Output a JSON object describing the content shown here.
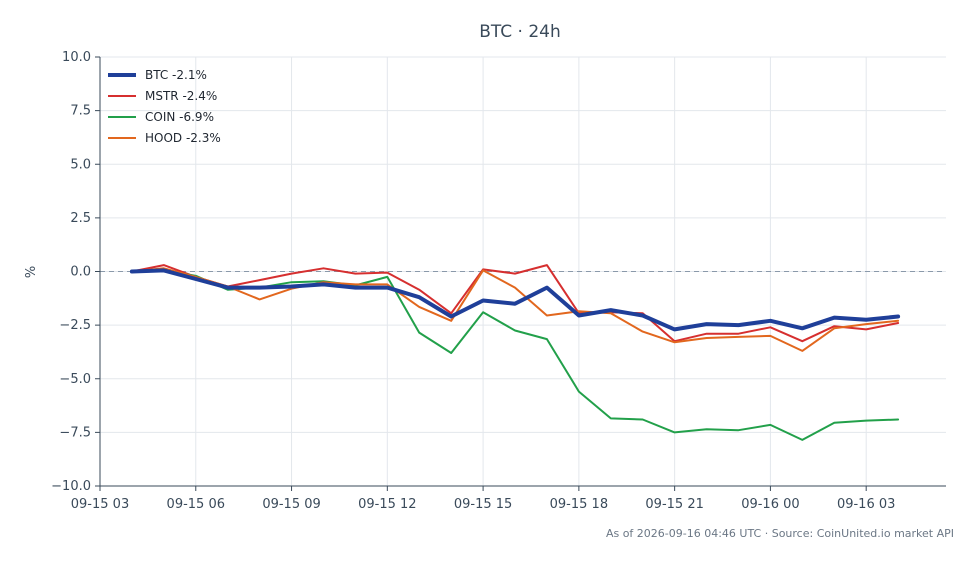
{
  "chart_data": {
    "type": "line",
    "title": "BTC · 24h",
    "ylabel": "%",
    "xlabel": "",
    "ylim": [
      -10,
      10
    ],
    "yticks": [
      10,
      7.5,
      5,
      2.5,
      0,
      -2.5,
      -5,
      -7.5,
      -10
    ],
    "ytick_labels": [
      "10.0",
      "7.5",
      "5.0",
      "2.5",
      "0.0",
      "−2.5",
      "−5.0",
      "−7.5",
      "−10.0"
    ],
    "xlim": [
      0,
      26.5
    ],
    "xticks": [
      0,
      3,
      6,
      9,
      12,
      15,
      18,
      21,
      24
    ],
    "xtick_labels": [
      "09-15 03",
      "09-15 06",
      "09-15 09",
      "09-15 12",
      "09-15 15",
      "09-15 18",
      "09-15 21",
      "09-16 00",
      "09-16 03"
    ],
    "x": [
      1,
      2,
      3,
      4,
      5,
      6,
      7,
      8,
      9,
      10,
      11,
      12,
      13,
      14,
      15,
      16,
      17,
      18,
      19,
      20,
      21,
      22,
      23,
      24,
      25,
      26
    ],
    "grid": true,
    "zero_line": true,
    "legend_position": "top-left",
    "series": [
      {
        "name": "BTC -2.1%",
        "color": "#1f3f99",
        "width": 4,
        "values": [
          0.0,
          0.05,
          -0.35,
          -0.75,
          -0.75,
          -0.7,
          -0.6,
          -0.75,
          -0.75,
          -1.2,
          -2.1,
          -1.35,
          -1.5,
          -0.75,
          -2.05,
          -1.8,
          -2.05,
          -2.7,
          -2.45,
          -2.5,
          -2.3,
          -2.65,
          -2.15,
          -2.25,
          -2.1,
          null
        ]
      },
      {
        "name": "MSTR -2.4%",
        "color": "#d62f2f",
        "width": 2,
        "values": [
          0.0,
          0.3,
          -0.25,
          -0.7,
          -0.4,
          -0.1,
          0.15,
          -0.1,
          -0.05,
          -0.85,
          -1.95,
          0.1,
          -0.1,
          0.3,
          -1.95,
          -1.9,
          -1.95,
          -3.25,
          -2.9,
          -2.9,
          -2.6,
          -3.25,
          -2.55,
          -2.7,
          -2.4,
          null
        ]
      },
      {
        "name": "COIN -6.9%",
        "color": "#22a04a",
        "width": 2,
        "values": [
          0.0,
          0.05,
          -0.2,
          -0.85,
          -0.75,
          -0.5,
          -0.45,
          -0.65,
          -0.25,
          -2.85,
          -3.8,
          -1.9,
          -2.75,
          -3.15,
          -5.6,
          -6.85,
          -6.9,
          -7.5,
          -7.35,
          -7.4,
          -7.15,
          -7.85,
          -7.05,
          -6.95,
          -6.9,
          null
        ]
      },
      {
        "name": "HOOD -2.3%",
        "color": "#e2671e",
        "width": 2,
        "values": [
          0.0,
          0.15,
          -0.25,
          -0.7,
          -1.3,
          -0.8,
          -0.5,
          -0.6,
          -0.6,
          -1.65,
          -2.3,
          0.05,
          -0.75,
          -2.05,
          -1.85,
          -1.95,
          -2.8,
          -3.3,
          -3.1,
          -3.05,
          -3.0,
          -3.7,
          -2.65,
          -2.45,
          -2.3,
          null
        ]
      }
    ],
    "footer": "As of 2026-09-16 04:46 UTC · Source: CoinUnited.io market API"
  }
}
